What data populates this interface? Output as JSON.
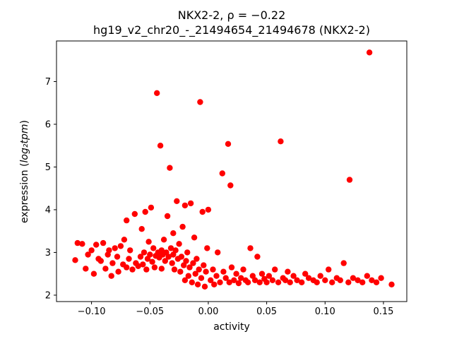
{
  "figure": {
    "title_line1": "NKX2-2, ρ = −0.22",
    "title_line2": "hg19_v2_chr20_-_21494654_21494678 (NKX2-2)",
    "xlabel": "activity",
    "ylabel_prefix": "expression (",
    "ylabel_math": "log₂tpm",
    "ylabel_suffix": ")"
  },
  "chart_data": {
    "type": "scatter",
    "title": "NKX2-2, ρ = −0.22",
    "subtitle": "hg19_v2_chr20_-_21494654_21494678 (NKX2-2)",
    "xlabel": "activity",
    "ylabel": "expression (log₂tpm)",
    "legend": null,
    "grid": false,
    "marker_color": "#ff0000",
    "marker_radius_px": 4.2,
    "xlim": [
      -0.13,
      0.17
    ],
    "ylim": [
      1.85,
      7.95
    ],
    "x_ticks": [
      -0.1,
      -0.05,
      0.0,
      0.05,
      0.1,
      0.15
    ],
    "x_tick_labels": [
      "−0.10",
      "−0.05",
      "0.00",
      "0.05",
      "0.10",
      "0.15"
    ],
    "y_ticks": [
      2,
      3,
      4,
      5,
      6,
      7
    ],
    "y_tick_labels": [
      "2",
      "3",
      "4",
      "5",
      "6",
      "7"
    ],
    "points": [
      [
        -0.114,
        2.82
      ],
      [
        -0.112,
        3.22
      ],
      [
        -0.108,
        3.2
      ],
      [
        -0.105,
        2.62
      ],
      [
        -0.103,
        2.95
      ],
      [
        -0.1,
        3.05
      ],
      [
        -0.098,
        2.5
      ],
      [
        -0.096,
        3.18
      ],
      [
        -0.094,
        2.85
      ],
      [
        -0.092,
        2.8
      ],
      [
        -0.09,
        3.22
      ],
      [
        -0.088,
        2.62
      ],
      [
        -0.086,
        2.95
      ],
      [
        -0.085,
        3.05
      ],
      [
        -0.083,
        2.45
      ],
      [
        -0.082,
        2.75
      ],
      [
        -0.08,
        3.1
      ],
      [
        -0.078,
        2.9
      ],
      [
        -0.077,
        2.55
      ],
      [
        -0.075,
        3.15
      ],
      [
        -0.073,
        2.72
      ],
      [
        -0.072,
        3.3
      ],
      [
        -0.07,
        2.65
      ],
      [
        -0.07,
        3.75
      ],
      [
        -0.068,
        2.85
      ],
      [
        -0.067,
        3.05
      ],
      [
        -0.065,
        2.6
      ],
      [
        -0.063,
        3.9
      ],
      [
        -0.062,
        2.75
      ],
      [
        -0.06,
        2.68
      ],
      [
        -0.058,
        2.9
      ],
      [
        -0.057,
        3.55
      ],
      [
        -0.056,
        2.72
      ],
      [
        -0.055,
        3.0
      ],
      [
        -0.054,
        3.95
      ],
      [
        -0.053,
        2.6
      ],
      [
        -0.052,
        2.85
      ],
      [
        -0.051,
        3.25
      ],
      [
        -0.05,
        2.95
      ],
      [
        -0.049,
        4.05
      ],
      [
        -0.048,
        2.78
      ],
      [
        -0.047,
        3.1
      ],
      [
        -0.046,
        2.65
      ],
      [
        -0.045,
        2.92
      ],
      [
        -0.044,
        6.73
      ],
      [
        -0.043,
        3.0
      ],
      [
        -0.042,
        2.88
      ],
      [
        -0.041,
        5.5
      ],
      [
        -0.04,
        3.05
      ],
      [
        -0.04,
        2.62
      ],
      [
        -0.039,
        2.95
      ],
      [
        -0.038,
        3.3
      ],
      [
        -0.037,
        2.8
      ],
      [
        -0.036,
        3.0
      ],
      [
        -0.035,
        3.85
      ],
      [
        -0.034,
        2.9
      ],
      [
        -0.033,
        4.98
      ],
      [
        -0.032,
        3.1
      ],
      [
        -0.031,
        2.75
      ],
      [
        -0.03,
        2.95
      ],
      [
        -0.03,
        3.45
      ],
      [
        -0.029,
        2.6
      ],
      [
        -0.028,
        3.05
      ],
      [
        -0.027,
        4.2
      ],
      [
        -0.026,
        2.85
      ],
      [
        -0.025,
        3.2
      ],
      [
        -0.024,
        2.55
      ],
      [
        -0.023,
        2.9
      ],
      [
        -0.022,
        3.6
      ],
      [
        -0.021,
        2.7
      ],
      [
        -0.02,
        4.1
      ],
      [
        -0.02,
        2.35
      ],
      [
        -0.019,
        2.8
      ],
      [
        -0.018,
        3.0
      ],
      [
        -0.017,
        2.45
      ],
      [
        -0.016,
        2.65
      ],
      [
        -0.015,
        4.15
      ],
      [
        -0.014,
        2.3
      ],
      [
        -0.013,
        2.75
      ],
      [
        -0.012,
        3.35
      ],
      [
        -0.011,
        2.5
      ],
      [
        -0.01,
        2.85
      ],
      [
        -0.009,
        2.25
      ],
      [
        -0.008,
        2.6
      ],
      [
        -0.007,
        6.52
      ],
      [
        -0.006,
        2.4
      ],
      [
        -0.005,
        3.95
      ],
      [
        -0.004,
        2.7
      ],
      [
        -0.003,
        2.2
      ],
      [
        -0.002,
        2.55
      ],
      [
        -0.001,
        3.1
      ],
      [
        0.0,
        4.0
      ],
      [
        0.002,
        2.35
      ],
      [
        0.004,
        2.6
      ],
      [
        0.005,
        2.25
      ],
      [
        0.007,
        2.45
      ],
      [
        0.008,
        3.0
      ],
      [
        0.01,
        2.3
      ],
      [
        0.012,
        4.85
      ],
      [
        0.013,
        2.55
      ],
      [
        0.015,
        2.4
      ],
      [
        0.017,
        5.54
      ],
      [
        0.018,
        2.3
      ],
      [
        0.019,
        4.57
      ],
      [
        0.02,
        2.65
      ],
      [
        0.022,
        2.35
      ],
      [
        0.024,
        2.5
      ],
      [
        0.026,
        2.28
      ],
      [
        0.028,
        2.4
      ],
      [
        0.03,
        2.6
      ],
      [
        0.032,
        2.35
      ],
      [
        0.034,
        2.3
      ],
      [
        0.036,
        3.1
      ],
      [
        0.038,
        2.45
      ],
      [
        0.04,
        2.35
      ],
      [
        0.042,
        2.9
      ],
      [
        0.044,
        2.3
      ],
      [
        0.046,
        2.5
      ],
      [
        0.048,
        2.38
      ],
      [
        0.05,
        2.3
      ],
      [
        0.052,
        2.45
      ],
      [
        0.055,
        2.35
      ],
      [
        0.057,
        2.6
      ],
      [
        0.06,
        2.3
      ],
      [
        0.062,
        5.6
      ],
      [
        0.064,
        2.4
      ],
      [
        0.066,
        2.35
      ],
      [
        0.068,
        2.55
      ],
      [
        0.07,
        2.3
      ],
      [
        0.073,
        2.45
      ],
      [
        0.076,
        2.35
      ],
      [
        0.08,
        2.3
      ],
      [
        0.083,
        2.5
      ],
      [
        0.086,
        2.4
      ],
      [
        0.09,
        2.35
      ],
      [
        0.093,
        2.3
      ],
      [
        0.096,
        2.45
      ],
      [
        0.1,
        2.35
      ],
      [
        0.103,
        2.6
      ],
      [
        0.106,
        2.3
      ],
      [
        0.11,
        2.4
      ],
      [
        0.113,
        2.35
      ],
      [
        0.116,
        2.75
      ],
      [
        0.12,
        2.3
      ],
      [
        0.121,
        4.7
      ],
      [
        0.124,
        2.4
      ],
      [
        0.128,
        2.35
      ],
      [
        0.132,
        2.3
      ],
      [
        0.136,
        2.45
      ],
      [
        0.138,
        7.68
      ],
      [
        0.14,
        2.35
      ],
      [
        0.144,
        2.3
      ],
      [
        0.148,
        2.4
      ],
      [
        0.157,
        2.25
      ]
    ]
  }
}
